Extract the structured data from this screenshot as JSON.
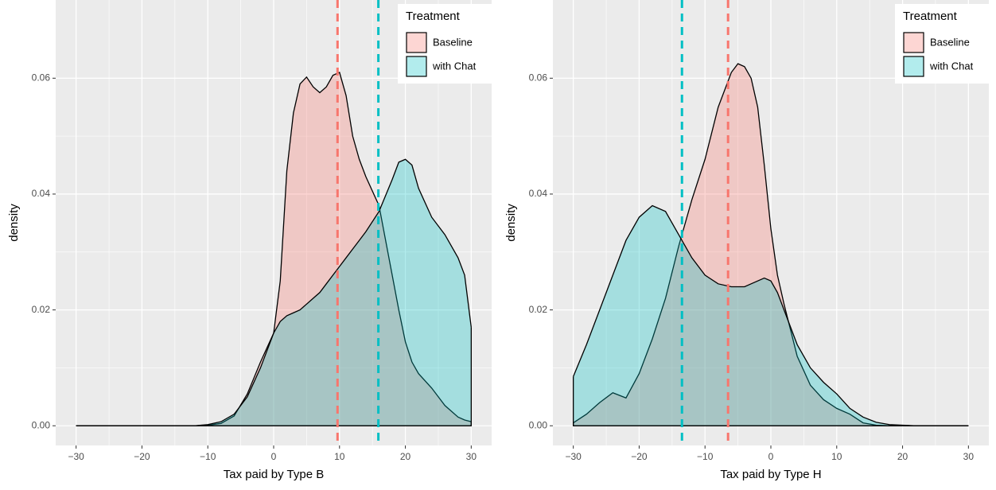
{
  "chart_data": [
    {
      "type": "density",
      "x_label": "Tax paid by Type B",
      "y_label": "density",
      "legend_title": "Treatment",
      "legend": "top-right",
      "grid": true,
      "xlim": [
        -33.1,
        33.1
      ],
      "ylim": [
        -0.0034,
        0.0735
      ],
      "xticks": [
        {
          "value": -30,
          "label": "−30"
        },
        {
          "value": -20,
          "label": "−20"
        },
        {
          "value": -10,
          "label": "−10"
        },
        0,
        10,
        20,
        30
      ],
      "yticks": [
        {
          "value": 0,
          "label": "0.00"
        },
        {
          "value": 0.02,
          "label": "0.02"
        },
        {
          "value": 0.04,
          "label": "0.04"
        },
        {
          "value": 0.06,
          "label": "0.06"
        }
      ],
      "x": [
        -30,
        -20,
        -12,
        -10,
        -8,
        -6,
        -4,
        -2,
        0,
        1,
        2,
        3,
        4,
        5,
        6,
        7,
        8,
        9,
        10,
        11,
        12,
        13,
        14,
        16,
        18,
        19,
        20,
        21,
        22,
        24,
        26,
        28,
        29,
        30
      ],
      "series": [
        {
          "name": "Baseline",
          "color": "#F8766D",
          "mean": 9.7,
          "values": [
            0,
            0,
            0,
            0.0001,
            0.0004,
            0.0017,
            0.0055,
            0.011,
            0.016,
            0.025,
            0.044,
            0.054,
            0.059,
            0.0602,
            0.0585,
            0.0575,
            0.0585,
            0.0605,
            0.061,
            0.057,
            0.05,
            0.046,
            0.043,
            0.038,
            0.026,
            0.02,
            0.0145,
            0.011,
            0.009,
            0.0065,
            0.0035,
            0.0015,
            0.001,
            0.0007
          ]
        },
        {
          "name": "with Chat",
          "color": "#00BFC4",
          "mean": 15.9,
          "values": [
            0,
            0,
            0,
            0.0002,
            0.0007,
            0.002,
            0.005,
            0.01,
            0.016,
            0.018,
            0.019,
            0.0195,
            0.02,
            0.021,
            0.022,
            0.023,
            0.0245,
            0.026,
            0.0275,
            0.029,
            0.0305,
            0.032,
            0.0335,
            0.037,
            0.0425,
            0.0455,
            0.046,
            0.045,
            0.041,
            0.036,
            0.033,
            0.029,
            0.026,
            0.017
          ]
        }
      ]
    },
    {
      "type": "density",
      "x_label": "Tax paid by Type H",
      "y_label": "density",
      "legend_title": "Treatment",
      "legend": "top-right",
      "grid": true,
      "xlim": [
        -33.1,
        33.1
      ],
      "ylim": [
        -0.0034,
        0.0735
      ],
      "xticks": [
        {
          "value": -30,
          "label": "−30"
        },
        {
          "value": -20,
          "label": "−20"
        },
        {
          "value": -10,
          "label": "−10"
        },
        0,
        10,
        20,
        30
      ],
      "yticks": [
        {
          "value": 0,
          "label": "0.00"
        },
        {
          "value": 0.02,
          "label": "0.02"
        },
        {
          "value": 0.04,
          "label": "0.04"
        },
        {
          "value": 0.06,
          "label": "0.06"
        }
      ],
      "x": [
        -30,
        -28,
        -26,
        -24,
        -22,
        -20,
        -18,
        -16,
        -14,
        -12,
        -10,
        -8,
        -6,
        -5,
        -4,
        -3,
        -2,
        -1,
        0,
        1,
        2,
        4,
        6,
        8,
        10,
        12,
        14,
        16,
        18,
        20,
        22,
        30
      ],
      "series": [
        {
          "name": "Baseline",
          "color": "#F8766D",
          "mean": -6.5,
          "values": [
            0.0005,
            0.002,
            0.004,
            0.0057,
            0.0048,
            0.009,
            0.015,
            0.022,
            0.031,
            0.039,
            0.046,
            0.055,
            0.061,
            0.0625,
            0.062,
            0.06,
            0.055,
            0.045,
            0.034,
            0.026,
            0.021,
            0.012,
            0.007,
            0.0045,
            0.003,
            0.002,
            0.0005,
            0.0001,
            0,
            0,
            0,
            0
          ]
        },
        {
          "name": "with Chat",
          "color": "#00BFC4",
          "mean": -13.5,
          "values": [
            0.0085,
            0.014,
            0.02,
            0.026,
            0.032,
            0.036,
            0.038,
            0.037,
            0.033,
            0.029,
            0.026,
            0.0245,
            0.024,
            0.024,
            0.024,
            0.0245,
            0.025,
            0.0255,
            0.025,
            0.023,
            0.02,
            0.014,
            0.01,
            0.0075,
            0.0055,
            0.003,
            0.0015,
            0.0006,
            0.0002,
            0.0001,
            0,
            0
          ]
        }
      ]
    }
  ]
}
